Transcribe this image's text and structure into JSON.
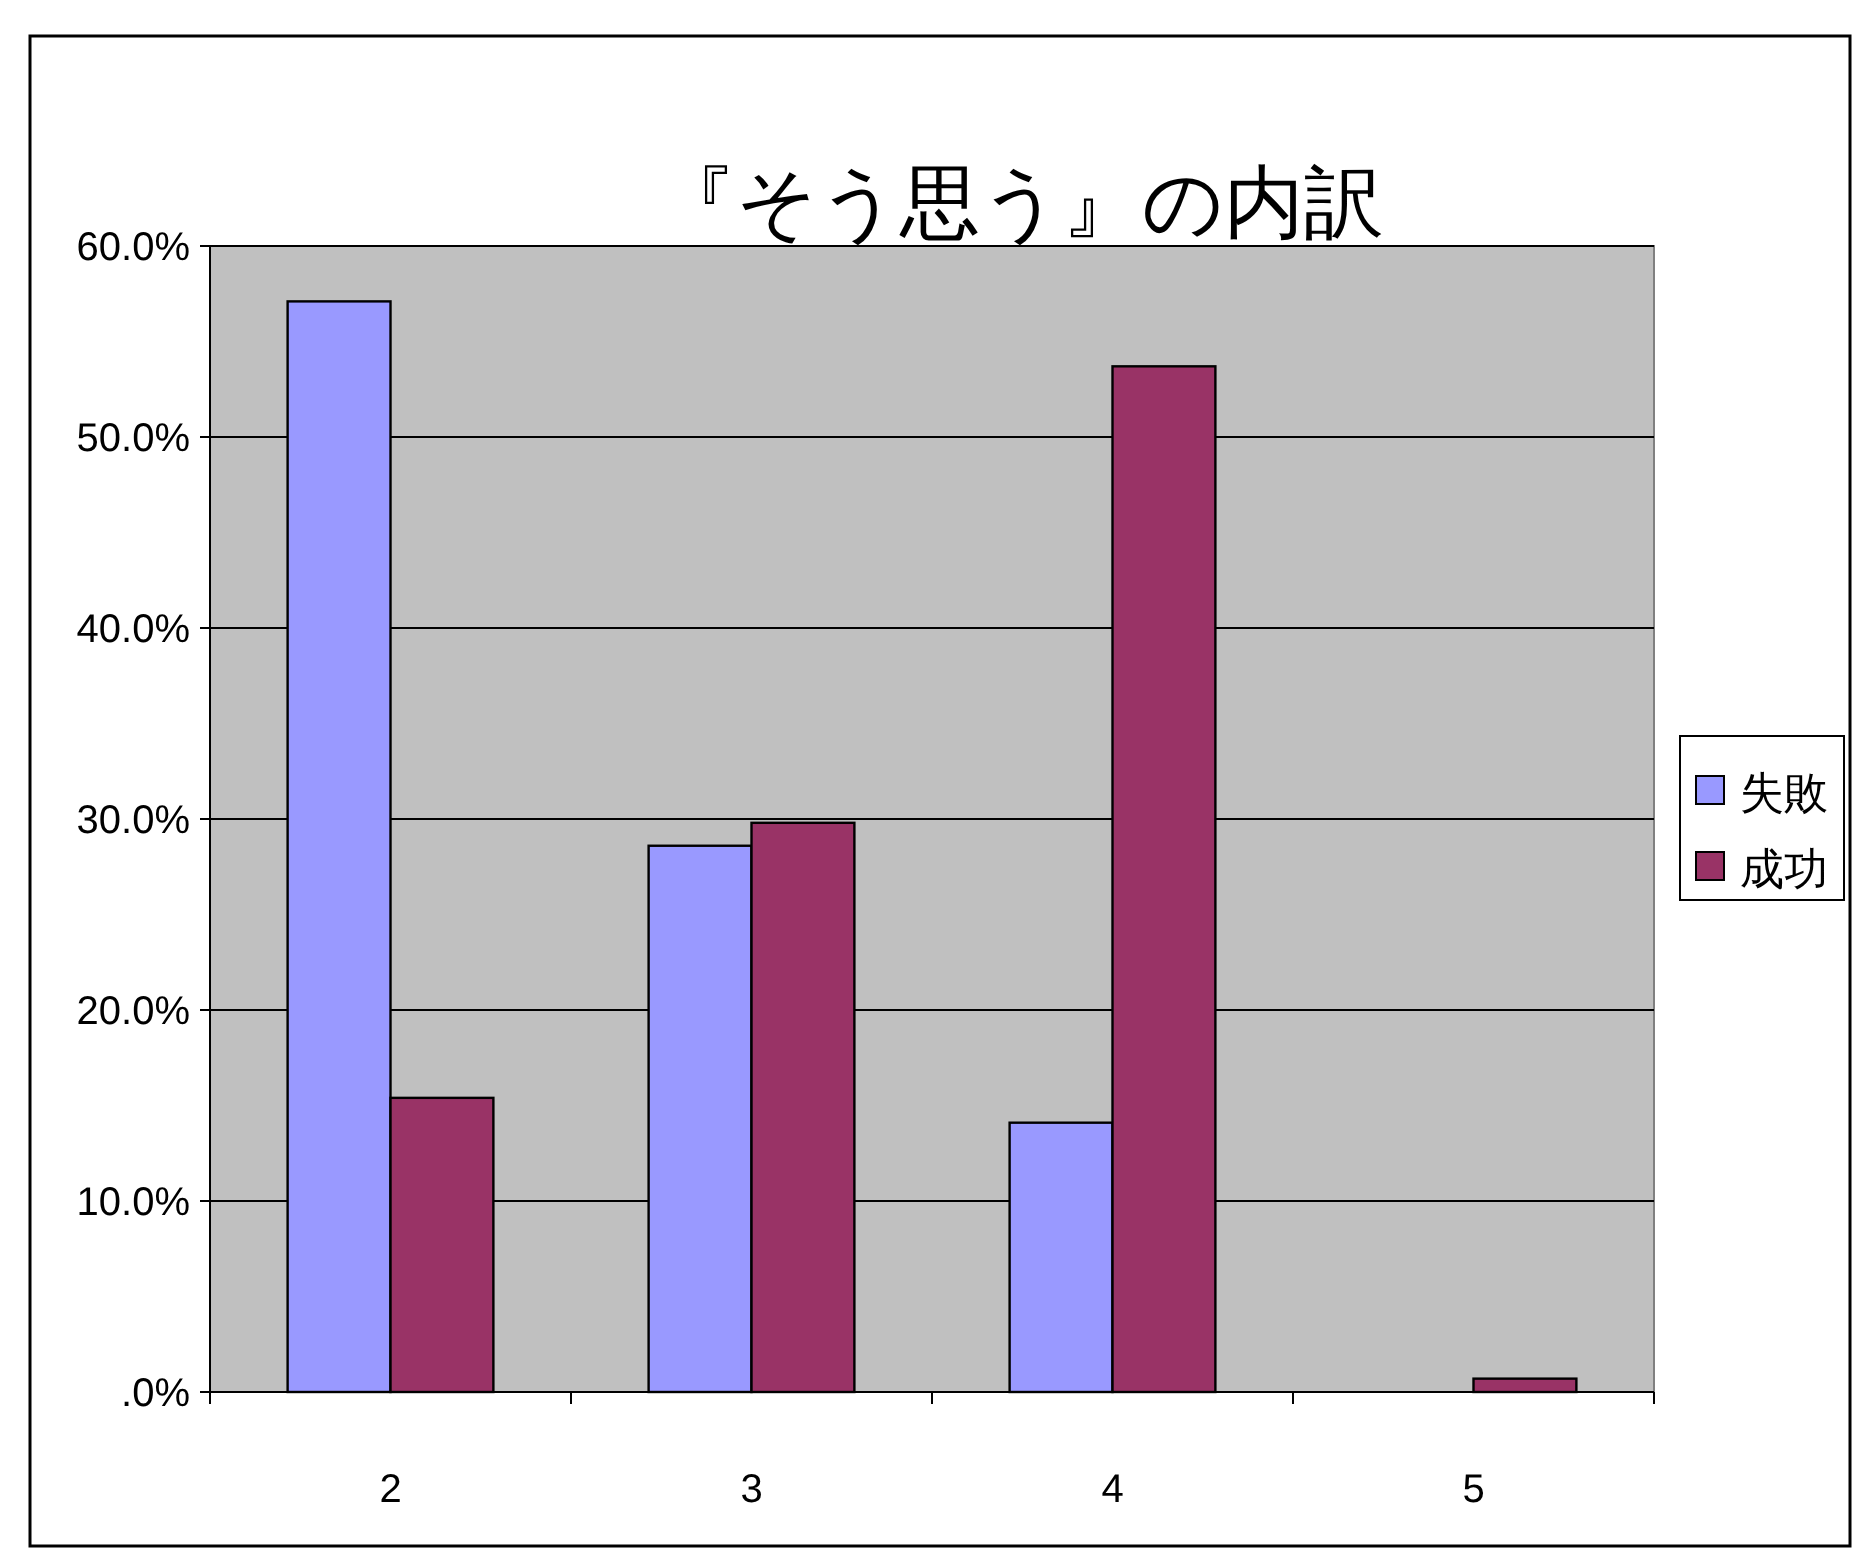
{
  "chart_data": {
    "type": "bar",
    "title": "『そう思う』の内訳",
    "categories": [
      "2",
      "3",
      "4",
      "5"
    ],
    "series": [
      {
        "name": "失敗",
        "color": "#9999ff",
        "values": [
          57.1,
          28.6,
          14.1,
          0
        ]
      },
      {
        "name": "成功",
        "color": "#993366",
        "values": [
          15.4,
          29.8,
          53.7,
          0.7
        ]
      }
    ],
    "ylim": [
      0,
      60
    ],
    "yticks": [
      {
        "value": 0,
        "label": ".0%"
      },
      {
        "value": 10,
        "label": "10.0%"
      },
      {
        "value": 20,
        "label": "20.0%"
      },
      {
        "value": 30,
        "label": "30.0%"
      },
      {
        "value": 40,
        "label": "40.0%"
      },
      {
        "value": 50,
        "label": "50.0%"
      },
      {
        "value": 60,
        "label": "60.0%"
      }
    ],
    "grid": "y",
    "legend": "right"
  }
}
